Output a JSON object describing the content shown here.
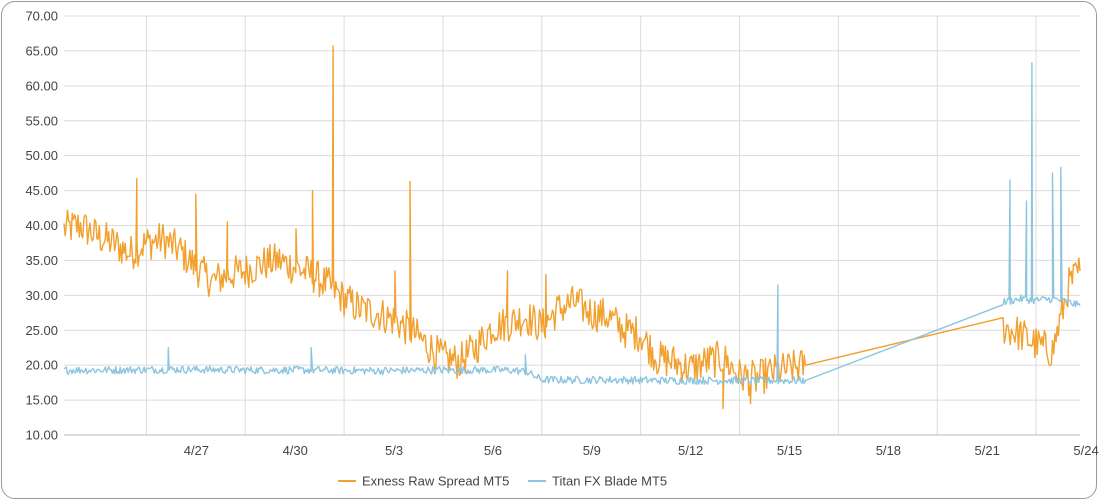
{
  "chart_data": {
    "type": "line",
    "title": "",
    "xlabel": "",
    "ylabel": "",
    "ylim": [
      10,
      70
    ],
    "xlim": [
      "2024-04-24T12:00",
      "2024-05-25T08:00"
    ],
    "y_ticks": [
      "10.00",
      "15.00",
      "20.00",
      "25.00",
      "30.00",
      "35.00",
      "40.00",
      "45.00",
      "50.00",
      "55.00",
      "60.00",
      "65.00",
      "70.00"
    ],
    "x_ticks": [
      "4/27",
      "4/30",
      "5/3",
      "5/6",
      "5/9",
      "5/12",
      "5/15",
      "5/18",
      "5/21",
      "5/24"
    ],
    "x_tick_dates": [
      "2024-04-27",
      "2024-04-30",
      "2024-05-03",
      "2024-05-06",
      "2024-05-09",
      "2024-05-12",
      "2024-05-15",
      "2024-05-18",
      "2024-05-21",
      "2024-05-24"
    ],
    "grid": true,
    "legend_position": "bottom",
    "series": [
      {
        "name": "Exness Raw Spread MT5",
        "color": "#F2A02E",
        "x": [
          "2024-04-24T12:00",
          "2024-04-25T00:00",
          "2024-04-25T12:00",
          "2024-04-26T00:00",
          "2024-04-26T12:00",
          "2024-04-27T00:00",
          "2024-04-27T12:00",
          "2024-04-28T00:00",
          "2024-04-28T12:00",
          "2024-04-29T00:00",
          "2024-04-29T12:00",
          "2024-04-30T00:00",
          "2024-04-30T12:00",
          "2024-05-01T00:00",
          "2024-05-01T12:00",
          "2024-05-02T00:00",
          "2024-05-02T12:00",
          "2024-05-03T00:00",
          "2024-05-03T12:00",
          "2024-05-04T00:00",
          "2024-05-04T12:00",
          "2024-05-05T00:00",
          "2024-05-05T12:00",
          "2024-05-06T00:00",
          "2024-05-06T12:00",
          "2024-05-07T00:00",
          "2024-05-07T12:00",
          "2024-05-08T00:00",
          "2024-05-08T12:00",
          "2024-05-09T00:00",
          "2024-05-09T12:00",
          "2024-05-10T00:00",
          "2024-05-10T12:00",
          "2024-05-11T00:00",
          "2024-05-11T12:00",
          "2024-05-12T00:00",
          "2024-05-12T12:00",
          "2024-05-13T00:00",
          "2024-05-13T12:00",
          "2024-05-14T00:00",
          "2024-05-14T12:00",
          "2024-05-15T00:00",
          "2024-05-15T12:00",
          "2024-05-16T00:00",
          "2024-05-16T12:00",
          "2024-05-17T00:00",
          "2024-05-23T00:00",
          "2024-05-23T12:00",
          "2024-05-24T00:00",
          "2024-05-24T12:00",
          "2024-05-25T00:00",
          "2024-05-25T08:00"
        ],
        "y": [
          39.5,
          40.0,
          38.5,
          37.5,
          36.0,
          37.5,
          38.0,
          36.5,
          34.0,
          32.0,
          33.0,
          33.5,
          34.5,
          35.0,
          34.0,
          33.0,
          31.5,
          29.5,
          28.0,
          27.5,
          26.5,
          25.0,
          23.0,
          21.0,
          20.5,
          22.5,
          25.5,
          26.0,
          27.0,
          25.5,
          28.0,
          29.0,
          27.5,
          27.0,
          25.0,
          24.5,
          21.0,
          20.5,
          19.5,
          20.5,
          21.0,
          18.5,
          18.0,
          19.0,
          19.5,
          20.0,
          25.5,
          24.5,
          23.0,
          22.0,
          31.5,
          33.5
        ]
      },
      {
        "name": "Titan FX Blade MT5",
        "color": "#8CC5E0",
        "x": [
          "2024-04-24T12:00",
          "2024-04-26T00:00",
          "2024-04-28T00:00",
          "2024-04-30T00:00",
          "2024-05-02T00:00",
          "2024-05-04T00:00",
          "2024-05-06T00:00",
          "2024-05-08T00:00",
          "2024-05-08T12:00",
          "2024-05-09T00:00",
          "2024-05-11T00:00",
          "2024-05-13T00:00",
          "2024-05-15T00:00",
          "2024-05-17T00:00",
          "2024-05-23T00:00",
          "2024-05-23T12:00",
          "2024-05-24T00:00",
          "2024-05-24T12:00",
          "2024-05-25T00:00",
          "2024-05-25T08:00"
        ],
        "y": [
          19.3,
          19.3,
          19.4,
          19.3,
          19.3,
          19.2,
          19.3,
          19.3,
          19.1,
          17.9,
          17.9,
          17.8,
          17.8,
          17.8,
          29.0,
          29.5,
          29.3,
          29.5,
          29.0,
          28.5
        ]
      }
    ],
    "spikes": [
      {
        "series": 0,
        "x": "2024-04-26T17:00",
        "y": 46.7
      },
      {
        "series": 0,
        "x": "2024-04-28T12:00",
        "y": 44.5
      },
      {
        "series": 0,
        "x": "2024-04-29T11:00",
        "y": 40.5
      },
      {
        "series": 0,
        "x": "2024-05-01T13:00",
        "y": 39.5
      },
      {
        "series": 0,
        "x": "2024-05-02T01:00",
        "y": 45.0
      },
      {
        "series": 0,
        "x": "2024-05-02T16:00",
        "y": 65.7
      },
      {
        "series": 0,
        "x": "2024-05-04T13:00",
        "y": 33.5
      },
      {
        "series": 0,
        "x": "2024-05-05T00:00",
        "y": 46.3
      },
      {
        "series": 0,
        "x": "2024-05-07T23:00",
        "y": 33.5
      },
      {
        "series": 0,
        "x": "2024-05-09T03:00",
        "y": 33.0
      },
      {
        "series": 0,
        "x": "2024-05-14T12:00",
        "y": 13.8
      },
      {
        "series": 0,
        "x": "2024-05-15T08:00",
        "y": 14.5
      },
      {
        "series": 1,
        "x": "2024-04-27T16:00",
        "y": 22.5
      },
      {
        "series": 1,
        "x": "2024-05-02T00:00",
        "y": 22.5
      },
      {
        "series": 1,
        "x": "2024-05-08T12:00",
        "y": 21.5
      },
      {
        "series": 1,
        "x": "2024-05-16T04:00",
        "y": 31.5
      },
      {
        "series": 1,
        "x": "2024-05-23T05:00",
        "y": 46.5
      },
      {
        "series": 1,
        "x": "2024-05-23T17:00",
        "y": 43.5
      },
      {
        "series": 1,
        "x": "2024-05-23T21:00",
        "y": 63.3
      },
      {
        "series": 1,
        "x": "2024-05-24T12:00",
        "y": 47.5
      },
      {
        "series": 1,
        "x": "2024-05-24T18:00",
        "y": 48.3
      }
    ]
  }
}
